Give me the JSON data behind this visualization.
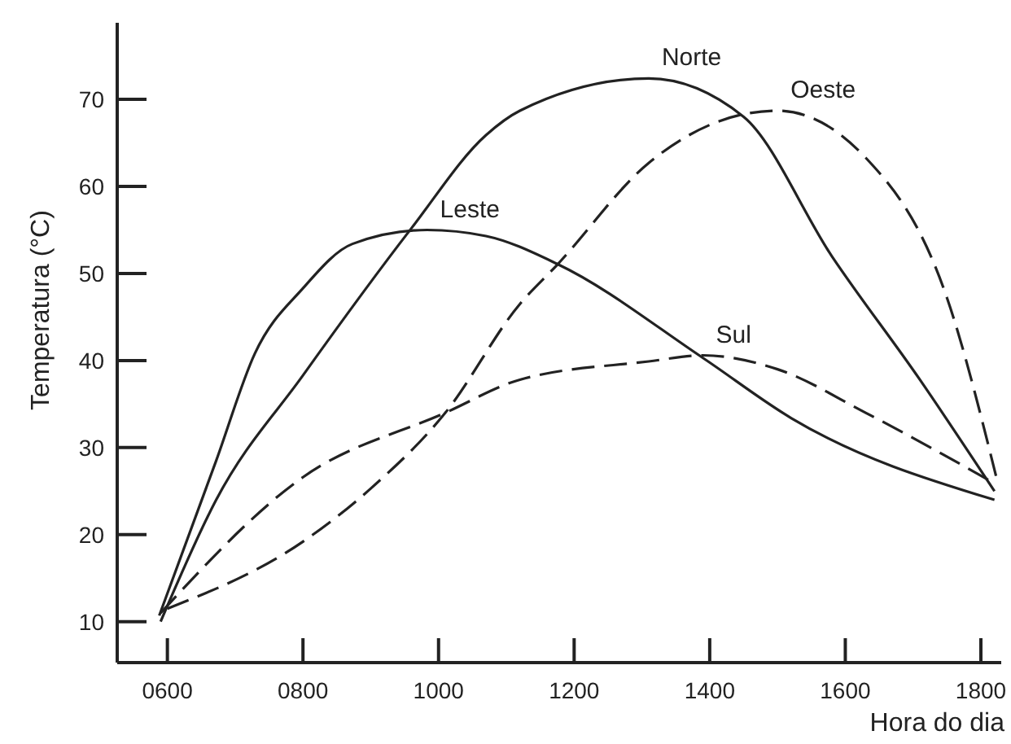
{
  "chart_data": {
    "type": "line",
    "xlabel": "Hora do dia",
    "ylabel": "Temperatura (°C)",
    "xlim": [
      526,
      1830
    ],
    "ylim": [
      5.3,
      78.8
    ],
    "xticks": [
      {
        "value": 600,
        "label": "0600"
      },
      {
        "value": 800,
        "label": "0800"
      },
      {
        "value": 1000,
        "label": "1000"
      },
      {
        "value": 1200,
        "label": "1200"
      },
      {
        "value": 1400,
        "label": "1400"
      },
      {
        "value": 1600,
        "label": "1600"
      },
      {
        "value": 1800,
        "label": "1800"
      }
    ],
    "yticks": [
      10,
      20,
      30,
      40,
      50,
      60,
      70
    ],
    "grid": false,
    "marker": "none",
    "series": [
      {
        "name": "Norte",
        "color": "#222222",
        "line_style": "solid",
        "x": [
          590,
          672,
          800,
          960,
          1070,
          1120,
          1310,
          1450,
          1580,
          1710,
          1820
        ],
        "values": [
          10,
          24,
          38.3,
          55.2,
          65.9,
          68.7,
          72.4,
          68,
          52,
          37.8,
          25
        ]
      },
      {
        "name": "Leste",
        "color": "#222222",
        "line_style": "solid",
        "x": [
          588,
          672,
          729,
          800,
          873,
          983,
          1070,
          1175,
          1390,
          1520,
          1820
        ],
        "values": [
          10.7,
          28.5,
          40.8,
          48.3,
          53.4,
          55,
          54.3,
          51.1,
          40.3,
          33.4,
          24
        ]
      },
      {
        "name": "Oeste",
        "color": "#222222",
        "line_style": "dashed",
        "x": [
          600,
          800,
          900,
          1010,
          1120,
          1175,
          1310,
          1450,
          1500,
          1630,
          1750,
          1825
        ],
        "values": [
          11.5,
          19.2,
          25.3,
          34,
          46.5,
          51,
          62.7,
          68.3,
          68.7,
          63.3,
          47.2,
          25.9
        ]
      },
      {
        "name": "Sul",
        "color": "#222222",
        "line_style": "dashed",
        "x": [
          590,
          800,
          1010,
          1120,
          1310,
          1390,
          1500,
          1630,
          1820
        ],
        "values": [
          11,
          26.6,
          34,
          37.8,
          39.9,
          40.6,
          39,
          34,
          25.9
        ]
      }
    ]
  }
}
